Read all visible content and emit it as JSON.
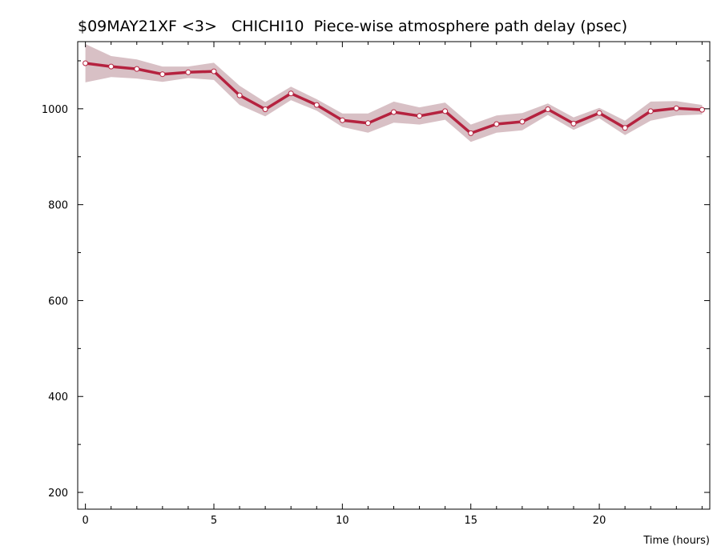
{
  "chart_data": {
    "type": "line",
    "title": "$09MAY21XF <3>   CHICHI10  Piece-wise atmosphere path delay (psec)",
    "xlabel": "Time (hours)",
    "ylabel": "",
    "xlim": [
      -0.3,
      24.3
    ],
    "ylim": [
      165,
      1140
    ],
    "x_ticks": [
      0,
      5,
      10,
      15,
      20
    ],
    "y_ticks": [
      200,
      400,
      600,
      800,
      1000
    ],
    "x_minor_step": 1,
    "y_minor_step": 100,
    "grid": false,
    "colors": {
      "line": "#b5223f",
      "band": "#d8c0c5",
      "marker_fill": "#ffffff"
    },
    "series": [
      {
        "x": [
          0,
          1,
          2,
          3,
          4,
          5,
          6,
          7,
          8,
          9,
          10,
          11,
          12,
          13,
          14,
          15,
          16,
          17,
          18,
          19,
          20,
          21,
          22,
          23,
          24
        ],
        "y": [
          1095,
          1088,
          1083,
          1072,
          1076,
          1078,
          1028,
          999,
          1032,
          1008,
          976,
          970,
          993,
          985,
          995,
          949,
          968,
          973,
          999,
          969,
          991,
          960,
          995,
          1001,
          998
        ],
        "err": [
          40,
          22,
          20,
          16,
          12,
          18,
          20,
          15,
          14,
          12,
          14,
          20,
          22,
          18,
          18,
          18,
          18,
          18,
          12,
          13,
          11,
          15,
          20,
          15,
          10
        ]
      }
    ]
  }
}
